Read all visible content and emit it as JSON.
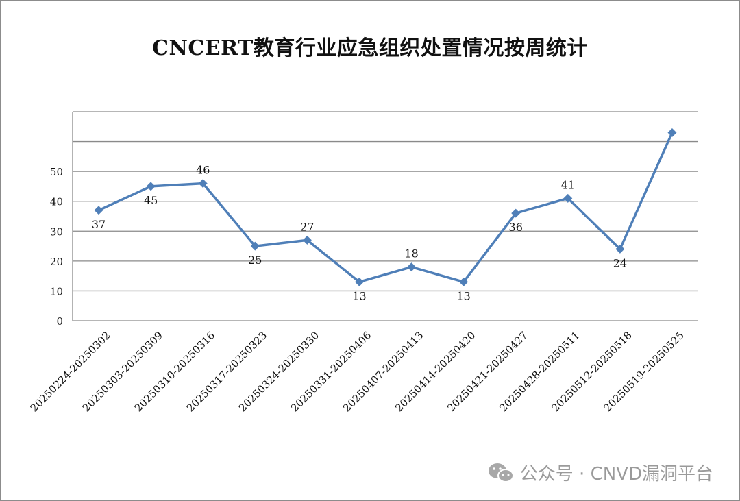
{
  "chart_data": {
    "type": "line",
    "title": "CNCERT教育行业应急组织处置情况按周统计",
    "categories": [
      "20250224-20250302",
      "20250303-20250309",
      "20250310-20250316",
      "20250317-20250323",
      "20250324-20250330",
      "20250331-20250406",
      "20250407-20250413",
      "20250414-20250420",
      "20250421-20250427",
      "20250428-20250511",
      "20250512-20250518",
      "20250519-20250525"
    ],
    "series": [
      {
        "values": [
          37,
          45,
          46,
          25,
          27,
          13,
          18,
          13,
          36,
          41,
          24,
          63
        ],
        "data_labels": [
          "37",
          "45",
          "46",
          "25",
          "27",
          "13",
          "18",
          "13",
          "36",
          "41",
          "24",
          ""
        ],
        "color": "#4f7fb8"
      }
    ],
    "y_ticks": [
      0,
      10,
      20,
      30,
      40,
      50
    ],
    "ylim": [
      0,
      70
    ],
    "grid": true,
    "xlabel": "",
    "ylabel": ""
  },
  "watermark": {
    "text": "公众号 · CNVD漏洞平台",
    "icon": "wechat-icon"
  }
}
